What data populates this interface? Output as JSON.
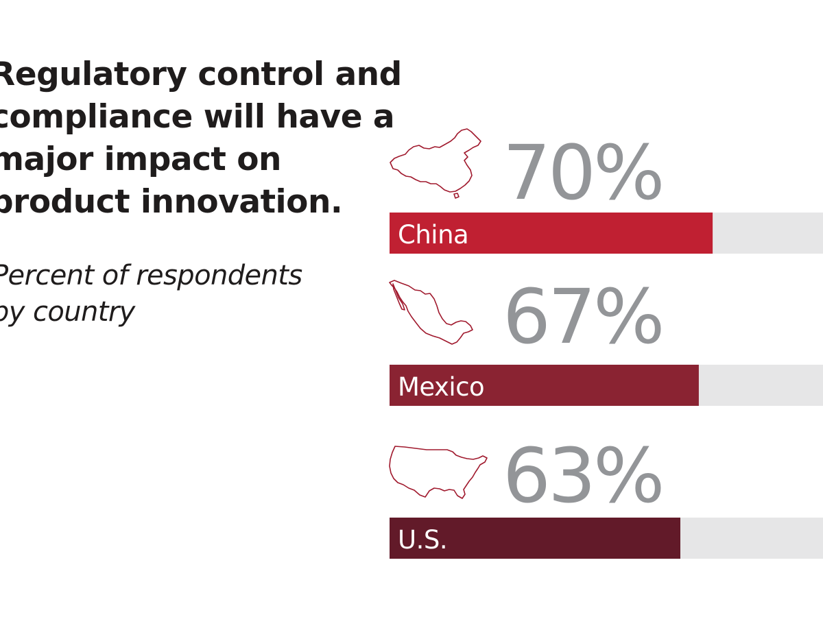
{
  "headline": "Regulatory control and compliance will have a major impact on product innovation.",
  "subtitle": "Percent of respondents by country",
  "colors": {
    "track": "#e6e6e7",
    "percent_text": "#939598",
    "outline": "#a0192d"
  },
  "chart_data": {
    "type": "bar",
    "categories": [
      "China",
      "Mexico",
      "U.S."
    ],
    "values": [
      70,
      67,
      63
    ],
    "value_labels": [
      "70%",
      "67%",
      "63%"
    ],
    "unit": "%",
    "xlim": [
      0,
      100
    ],
    "bar_colors": [
      "#c02032",
      "#8a2332",
      "#621a29"
    ],
    "icons": [
      "china-map-icon",
      "mexico-map-icon",
      "usa-map-icon"
    ]
  }
}
